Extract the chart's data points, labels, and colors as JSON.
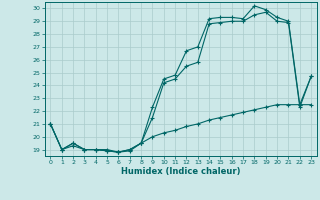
{
  "xlabel": "Humidex (Indice chaleur)",
  "bg_color": "#cce8e8",
  "grid_color": "#aacccc",
  "line_color": "#006666",
  "xlim": [
    -0.5,
    23.5
  ],
  "ylim": [
    18.5,
    30.5
  ],
  "yticks": [
    19,
    20,
    21,
    22,
    23,
    24,
    25,
    26,
    27,
    28,
    29,
    30
  ],
  "xticks": [
    0,
    1,
    2,
    3,
    4,
    5,
    6,
    7,
    8,
    9,
    10,
    11,
    12,
    13,
    14,
    15,
    16,
    17,
    18,
    19,
    20,
    21,
    22,
    23
  ],
  "line1_x": [
    0,
    1,
    2,
    3,
    4,
    5,
    6,
    7,
    8,
    9,
    10,
    11,
    12,
    13,
    14,
    15,
    16,
    17,
    18,
    19,
    20,
    21,
    22,
    23
  ],
  "line1_y": [
    21,
    19,
    19.5,
    19,
    19,
    19,
    18.8,
    19.0,
    19.5,
    22.3,
    24.5,
    24.8,
    26.7,
    27.0,
    29.2,
    29.3,
    29.3,
    29.2,
    30.2,
    29.9,
    29.3,
    29.0,
    22.5,
    24.7
  ],
  "line2_x": [
    0,
    1,
    2,
    3,
    4,
    5,
    6,
    7,
    8,
    9,
    10,
    11,
    12,
    13,
    14,
    15,
    16,
    17,
    18,
    19,
    20,
    21,
    22,
    23
  ],
  "line2_y": [
    21,
    19,
    19.5,
    19,
    19,
    18.9,
    18.8,
    19.0,
    19.5,
    21.5,
    24.2,
    24.5,
    25.5,
    25.8,
    28.8,
    28.9,
    29.0,
    29.0,
    29.5,
    29.7,
    29.0,
    28.9,
    22.3,
    24.7
  ],
  "line3_x": [
    0,
    1,
    2,
    3,
    4,
    5,
    6,
    7,
    8,
    9,
    10,
    11,
    12,
    13,
    14,
    15,
    16,
    17,
    18,
    19,
    20,
    21,
    22,
    23
  ],
  "line3_y": [
    21,
    19,
    19.3,
    19,
    19,
    18.9,
    18.8,
    18.9,
    19.5,
    20.0,
    20.3,
    20.5,
    20.8,
    21.0,
    21.3,
    21.5,
    21.7,
    21.9,
    22.1,
    22.3,
    22.5,
    22.5,
    22.5,
    22.5
  ]
}
